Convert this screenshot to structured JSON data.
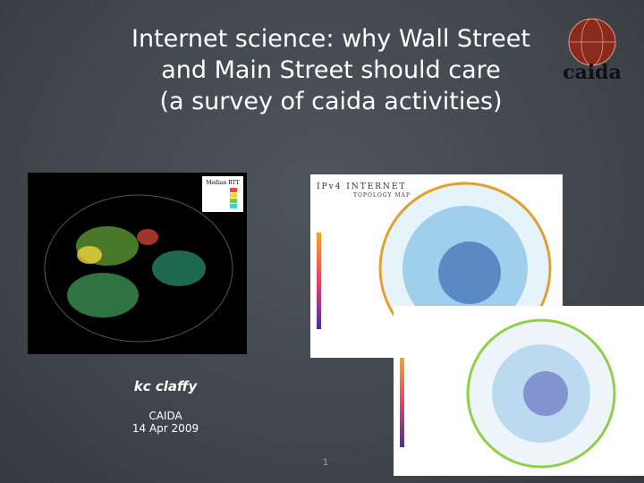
{
  "slide": {
    "title_lines": [
      "Internet science: why Wall Street",
      "and Main Street should care",
      "(a survey of caida activities)"
    ],
    "logo": {
      "text": "caida"
    },
    "images": {
      "rtt_map": {
        "legend_title": "Median RTT"
      },
      "topology_map": {
        "title": "IPv4 INTERNET",
        "subtitle": "TOPOLOGY MAP"
      }
    },
    "author": "kc claffy",
    "affiliation": "CAIDA",
    "date": "14 Apr 2009",
    "page_number": "1"
  }
}
